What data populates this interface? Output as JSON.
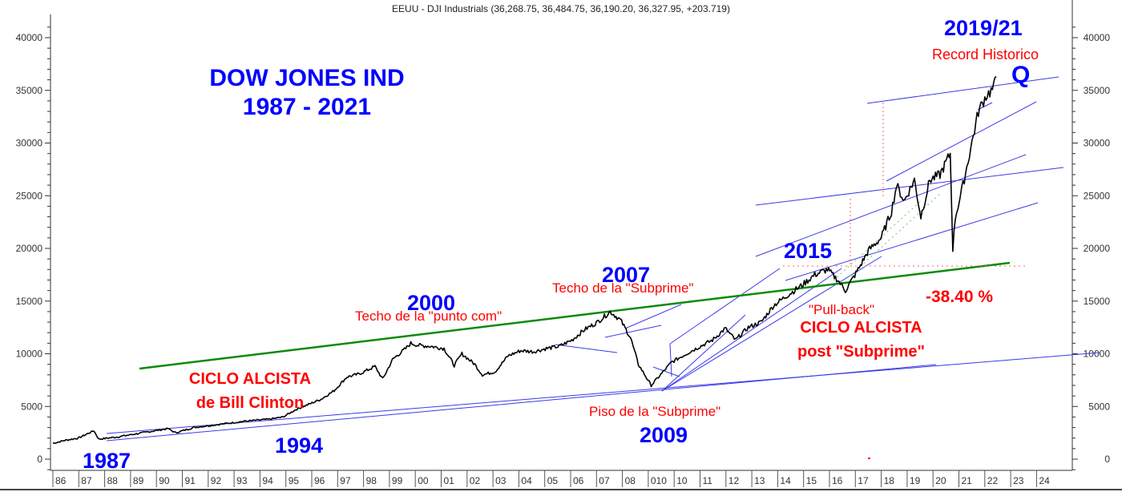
{
  "header": {
    "title": "EEUU - DJI Industrials (36,268.75, 36,484.75, 36,190.20, 36,327.95, +203.719)"
  },
  "annotations": {
    "main_title_line1": "DOW JONES IND",
    "main_title_line2": "1987 - 2021",
    "y1987": "1987",
    "y1994": "1994",
    "y2000": "2000",
    "y2007": "2007",
    "y2009": "2009",
    "y2015": "2015",
    "y2019_21": "2019/21",
    "techo_punto_com": "Techo de la \"punto com\"",
    "techo_subprime": "Techo de la \"Subprime\"",
    "piso_subprime": "Piso de la \"Subprime\"",
    "pull_back": "\"Pull-back\"",
    "record_historico": "Record Historico",
    "ciclo_clinton_l1": "CICLO ALCISTA",
    "ciclo_clinton_l2": "de Bill Clinton",
    "ciclo_post_l1": "CICLO ALCISTA",
    "ciclo_post_l2": "post \"Subprime\"",
    "drop_pct": "-38.40 %",
    "q_mark": "Q"
  },
  "chart_data": {
    "type": "line",
    "title": "EEUU - DJI Industrials (36,268.75, 36,484.75, 36,190.20, 36,327.95, +203.719)",
    "subtitle": "DOW JONES IND 1987 - 2021",
    "xlabel": "",
    "ylabel": "",
    "ylim": [
      0,
      40000
    ],
    "yticks": [
      0,
      5000,
      10000,
      15000,
      20000,
      25000,
      30000,
      35000,
      40000
    ],
    "xtick_labels": [
      "86",
      "87",
      "88",
      "89",
      "90",
      "91",
      "92",
      "93",
      "94",
      "95",
      "96",
      "97",
      "98",
      "99",
      "00",
      "01",
      "02",
      "03",
      "04",
      "05",
      "06",
      "07",
      "08",
      "010",
      "10",
      "11",
      "12",
      "13",
      "14",
      "15",
      "16",
      "17",
      "18",
      "19",
      "20",
      "21",
      "22",
      "23",
      "24"
    ],
    "grid": false,
    "legend": "none",
    "series": [
      {
        "name": "DJI Industrials",
        "color": "#000000",
        "x": [
          1986.0,
          1986.5,
          1987.0,
          1987.6,
          1987.8,
          1988.5,
          1989.5,
          1990.5,
          1990.8,
          1991.5,
          1992.5,
          1993.5,
          1994.5,
          1995.0,
          1995.5,
          1996.0,
          1996.5,
          1997.0,
          1997.5,
          1998.0,
          1998.6,
          1998.9,
          1999.3,
          1999.8,
          2000.0,
          2000.3,
          2000.8,
          2001.3,
          2001.7,
          2002.0,
          2002.5,
          2002.8,
          2003.3,
          2003.8,
          2004.3,
          2004.8,
          2005.3,
          2005.8,
          2006.3,
          2006.8,
          2007.3,
          2007.8,
          2008.2,
          2008.6,
          2008.9,
          2009.2,
          2009.6,
          2010.0,
          2010.4,
          2010.8,
          2011.3,
          2011.7,
          2012.2,
          2012.7,
          2013.2,
          2013.7,
          2014.3,
          2014.8,
          2015.3,
          2015.7,
          2016.0,
          2016.5,
          2016.9,
          2017.4,
          2017.8,
          2018.0,
          2018.3,
          2018.7,
          2018.95,
          2019.3,
          2019.7,
          2020.1,
          2020.2,
          2020.3,
          2020.6,
          2020.9,
          2021.2,
          2021.5,
          2021.8,
          2021.9
        ],
        "values": [
          1500,
          1800,
          2000,
          2700,
          1900,
          2100,
          2500,
          2900,
          2500,
          3000,
          3300,
          3600,
          3800,
          4000,
          4700,
          5200,
          5700,
          6500,
          7800,
          8100,
          8800,
          7600,
          9500,
          10500,
          11000,
          10800,
          10700,
          10500,
          8900,
          10000,
          9000,
          8000,
          8300,
          9800,
          10300,
          10200,
          10500,
          10700,
          11300,
          12300,
          13000,
          14000,
          13200,
          11500,
          9000,
          7000,
          9200,
          10300,
          10800,
          11300,
          12400,
          11300,
          12500,
          13000,
          14600,
          15500,
          16500,
          17500,
          18000,
          17000,
          16000,
          18000,
          19800,
          21000,
          23500,
          26000,
          24500,
          26500,
          23000,
          26500,
          27000,
          29000,
          20000,
          23000,
          26000,
          29500,
          33000,
          34500,
          35200,
          36300
        ]
      }
    ],
    "trendlines": [
      {
        "name": "long-term green support",
        "color": "#008000",
        "from": [
          1988.8,
          8700
        ],
        "to": [
          2022.2,
          18800
        ]
      },
      {
        "name": "Clinton channel upper",
        "color": "#4444ee",
        "from": [
          1987.8,
          2600
        ],
        "to": [
          2024.0,
          13500
        ]
      },
      {
        "name": "Clinton channel lower",
        "color": "#4444ee",
        "from": [
          1987.8,
          1800
        ],
        "to": [
          2019.5,
          9000
        ]
      }
    ],
    "annotations": [
      {
        "text": "1987",
        "x": 1987,
        "color": "#0000ff"
      },
      {
        "text": "1994",
        "x": 1994,
        "color": "#0000ff"
      },
      {
        "text": "2000 Techo de la \"punto com\"",
        "x": 2000,
        "y": 11700
      },
      {
        "text": "2007 Techo de la \"Subprime\"",
        "x": 2007.8,
        "y": 14200
      },
      {
        "text": "2009 Piso de la \"Subprime\"",
        "x": 2009.2,
        "y": 6500
      },
      {
        "text": "2015 \"Pull-back\"",
        "x": 2015.7,
        "y": 15500
      },
      {
        "text": "2019/21 Record Historico",
        "x": 2021.9,
        "y": 36300
      },
      {
        "text": "-38.40 %",
        "x": 2020.2,
        "y": 18400
      },
      {
        "text": "CICLO ALCISTA de Bill Clinton"
      },
      {
        "text": "CICLO ALCISTA post \"Subprime\""
      }
    ]
  }
}
